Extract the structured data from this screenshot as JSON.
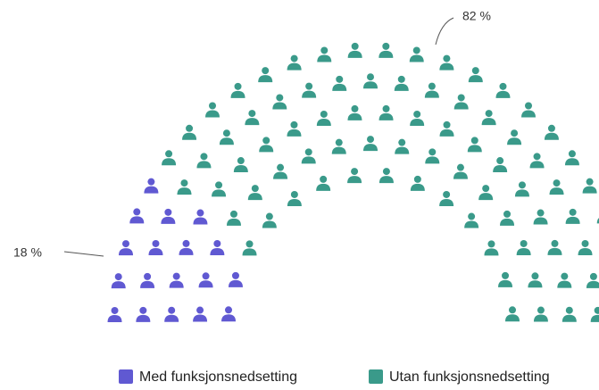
{
  "chart_data": {
    "type": "item",
    "series": [
      {
        "name": "Med funksjonsnedsetting",
        "color": "#6059d2",
        "values": [
          18
        ],
        "value_labels": [
          "18 %"
        ]
      },
      {
        "name": "Utan funksjonsnedsetting",
        "color": "#3a9a8a",
        "values": [
          82
        ],
        "value_labels": [
          "82 %"
        ]
      }
    ],
    "legend": "bottom"
  }
}
